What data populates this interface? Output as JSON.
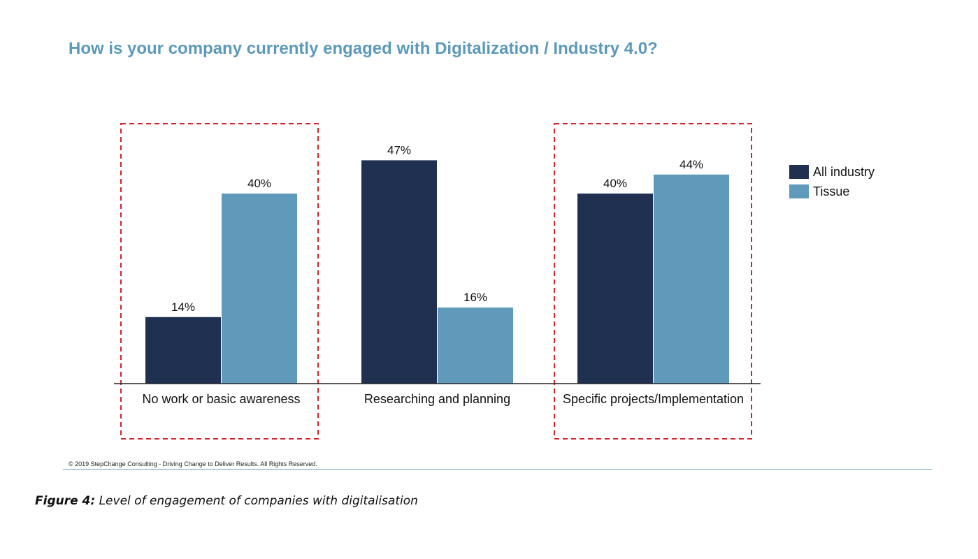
{
  "chart_data": {
    "type": "bar",
    "title": "How is your company currently engaged with Digitalization / Industry 4.0?",
    "categories": [
      "No work or basic awareness",
      "Researching and planning",
      "Specific projects/Implementation"
    ],
    "series": [
      {
        "name": "All industry",
        "values": [
          14,
          47,
          40
        ],
        "color": "#1f3050"
      },
      {
        "name": "Tissue",
        "values": [
          40,
          16,
          44
        ],
        "color": "#5f9abb"
      }
    ],
    "value_suffix": "%",
    "ylim": [
      0,
      50
    ],
    "grid": false,
    "legend_position": "right",
    "highlighted_categories": [
      "No work or basic awareness",
      "Specific projects/Implementation"
    ],
    "highlight_color": "#d2232a"
  },
  "footer": {
    "copyright": "© 2019 StepChange Consulting - Driving Change to Deliver Results. All Rights Reserved.",
    "caption_label": "Figure 4:",
    "caption_text": " Level of engagement of companies with digitalisation"
  }
}
